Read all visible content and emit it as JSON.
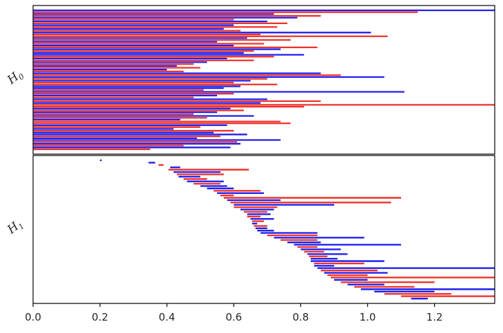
{
  "chart_data": {
    "type": "barcode",
    "title": "",
    "xlabel": "",
    "xlim": [
      0.0,
      1.38
    ],
    "xticks": [
      "0.0",
      "0.2",
      "0.4",
      "0.6",
      "0.8",
      "1.0",
      "1.2"
    ],
    "colors": {
      "blue": "#1f1fef",
      "red": "#f0302a",
      "axis": "#000000"
    },
    "panels": [
      {
        "name": "H0",
        "ylabel": "H",
        "ylabel_sub": "0",
        "bars": [
          {
            "s": 0,
            "e": 1.38,
            "c": "b"
          },
          {
            "s": 0,
            "e": 1.15,
            "c": "r"
          },
          {
            "s": 0,
            "e": 0.72,
            "c": "b"
          },
          {
            "s": 0,
            "e": 0.86,
            "c": "r"
          },
          {
            "s": 0,
            "e": 0.79,
            "c": "b"
          },
          {
            "s": 0,
            "e": 0.6,
            "c": "r"
          },
          {
            "s": 0,
            "e": 0.7,
            "c": "b"
          },
          {
            "s": 0,
            "e": 0.76,
            "c": "r"
          },
          {
            "s": 0,
            "e": 0.6,
            "c": "b"
          },
          {
            "s": 0,
            "e": 0.73,
            "c": "r"
          },
          {
            "s": 0,
            "e": 0.57,
            "c": "b"
          },
          {
            "s": 0,
            "e": 0.62,
            "c": "r"
          },
          {
            "s": 0,
            "e": 1.01,
            "c": "b"
          },
          {
            "s": 0,
            "e": 0.68,
            "c": "r"
          },
          {
            "s": 0,
            "e": 1.06,
            "c": "r"
          },
          {
            "s": 0,
            "e": 0.64,
            "c": "b"
          },
          {
            "s": 0,
            "e": 0.77,
            "c": "r"
          },
          {
            "s": 0,
            "e": 0.55,
            "c": "b"
          },
          {
            "s": 0,
            "e": 0.69,
            "c": "r"
          },
          {
            "s": 0,
            "e": 0.6,
            "c": "b"
          },
          {
            "s": 0,
            "e": 0.85,
            "c": "r"
          },
          {
            "s": 0,
            "e": 0.74,
            "c": "b"
          },
          {
            "s": 0,
            "e": 0.66,
            "c": "r"
          },
          {
            "s": 0,
            "e": 0.63,
            "c": "b"
          },
          {
            "s": 0,
            "e": 0.81,
            "c": "b"
          },
          {
            "s": 0,
            "e": 0.72,
            "c": "r"
          },
          {
            "s": 0,
            "e": 0.58,
            "c": "b"
          },
          {
            "s": 0,
            "e": 0.66,
            "c": "r"
          },
          {
            "s": 0,
            "e": 0.52,
            "c": "b"
          },
          {
            "s": 0,
            "e": 0.48,
            "c": "r"
          },
          {
            "s": 0,
            "e": 0.43,
            "c": "b"
          },
          {
            "s": 0,
            "e": 0.5,
            "c": "r"
          },
          {
            "s": 0,
            "e": 0.4,
            "c": "b"
          },
          {
            "s": 0,
            "e": 0.45,
            "c": "r"
          },
          {
            "s": 0,
            "e": 0.86,
            "c": "b"
          },
          {
            "s": 0,
            "e": 0.92,
            "c": "r"
          },
          {
            "s": 0,
            "e": 1.05,
            "c": "b"
          },
          {
            "s": 0,
            "e": 0.7,
            "c": "r"
          },
          {
            "s": 0,
            "e": 0.65,
            "c": "b"
          },
          {
            "s": 0,
            "e": 0.6,
            "c": "r"
          },
          {
            "s": 0,
            "e": 0.73,
            "c": "r"
          },
          {
            "s": 0,
            "e": 0.62,
            "c": "b"
          },
          {
            "s": 0,
            "e": 0.57,
            "c": "b"
          },
          {
            "s": 0,
            "e": 0.51,
            "c": "r"
          },
          {
            "s": 0,
            "e": 1.11,
            "c": "b"
          },
          {
            "s": 0,
            "e": 0.6,
            "c": "r"
          },
          {
            "s": 0,
            "e": 0.55,
            "c": "b"
          },
          {
            "s": 0,
            "e": 0.48,
            "c": "r"
          },
          {
            "s": 0,
            "e": 0.7,
            "c": "b"
          },
          {
            "s": 0,
            "e": 0.86,
            "c": "r"
          },
          {
            "s": 0,
            "e": 0.68,
            "c": "b"
          },
          {
            "s": 0,
            "e": 1.38,
            "c": "r"
          },
          {
            "s": 0,
            "e": 0.81,
            "c": "r"
          },
          {
            "s": 0,
            "e": 0.59,
            "c": "b"
          },
          {
            "s": 0,
            "e": 0.63,
            "c": "r"
          },
          {
            "s": 0,
            "e": 0.55,
            "c": "b"
          },
          {
            "s": 0,
            "e": 0.48,
            "c": "r"
          },
          {
            "s": 0,
            "e": 0.66,
            "c": "b"
          },
          {
            "s": 0,
            "e": 0.52,
            "c": "r"
          },
          {
            "s": 0,
            "e": 0.44,
            "c": "b"
          },
          {
            "s": 0,
            "e": 0.74,
            "c": "r"
          },
          {
            "s": 0,
            "e": 0.77,
            "c": "r"
          },
          {
            "s": 0,
            "e": 0.58,
            "c": "b"
          },
          {
            "s": 0,
            "e": 0.5,
            "c": "r"
          },
          {
            "s": 0,
            "e": 0.42,
            "c": "b"
          },
          {
            "s": 0,
            "e": 0.6,
            "c": "r"
          },
          {
            "s": 0,
            "e": 0.54,
            "c": "b"
          },
          {
            "s": 0,
            "e": 0.64,
            "c": "b"
          },
          {
            "s": 0,
            "e": 0.56,
            "c": "r"
          },
          {
            "s": 0,
            "e": 0.49,
            "c": "b"
          },
          {
            "s": 0,
            "e": 0.74,
            "c": "b"
          },
          {
            "s": 0,
            "e": 0.61,
            "c": "r"
          },
          {
            "s": 0,
            "e": 0.62,
            "c": "b"
          },
          {
            "s": 0,
            "e": 0.45,
            "c": "r"
          },
          {
            "s": 0,
            "e": 0.59,
            "c": "b"
          },
          {
            "s": 0,
            "e": 0.35,
            "c": "r"
          }
        ]
      },
      {
        "name": "H1",
        "ylabel": "H",
        "ylabel_sub": "1",
        "bars": [
          {
            "s": 0.2,
            "e": 0.205,
            "c": "b"
          },
          {
            "s": 0.345,
            "e": 0.365,
            "c": "b"
          },
          {
            "s": 0.375,
            "e": 0.39,
            "c": "r"
          },
          {
            "s": 0.41,
            "e": 0.44,
            "c": "b"
          },
          {
            "s": 0.405,
            "e": 0.645,
            "c": "r"
          },
          {
            "s": 0.42,
            "e": 0.56,
            "c": "b"
          },
          {
            "s": 0.43,
            "e": 0.57,
            "c": "r"
          },
          {
            "s": 0.435,
            "e": 0.5,
            "c": "b"
          },
          {
            "s": 0.45,
            "e": 0.52,
            "c": "r"
          },
          {
            "s": 0.46,
            "e": 0.57,
            "c": "b"
          },
          {
            "s": 0.48,
            "e": 0.56,
            "c": "r"
          },
          {
            "s": 0.5,
            "e": 0.58,
            "c": "b"
          },
          {
            "s": 0.52,
            "e": 0.6,
            "c": "b"
          },
          {
            "s": 0.54,
            "e": 0.68,
            "c": "r"
          },
          {
            "s": 0.55,
            "e": 0.69,
            "c": "b"
          },
          {
            "s": 0.56,
            "e": 0.6,
            "c": "r"
          },
          {
            "s": 0.57,
            "e": 1.1,
            "c": "r"
          },
          {
            "s": 0.58,
            "e": 0.74,
            "c": "b"
          },
          {
            "s": 0.59,
            "e": 1.07,
            "c": "r"
          },
          {
            "s": 0.6,
            "e": 0.9,
            "c": "b"
          },
          {
            "s": 0.6,
            "e": 0.73,
            "c": "r"
          },
          {
            "s": 0.62,
            "e": 0.72,
            "c": "b"
          },
          {
            "s": 0.63,
            "e": 0.7,
            "c": "r"
          },
          {
            "s": 0.64,
            "e": 0.71,
            "c": "b"
          },
          {
            "s": 0.64,
            "e": 0.68,
            "c": "r"
          },
          {
            "s": 0.65,
            "e": 0.72,
            "c": "b"
          },
          {
            "s": 0.655,
            "e": 0.69,
            "c": "r"
          },
          {
            "s": 0.655,
            "e": 0.67,
            "c": "b"
          },
          {
            "s": 0.66,
            "e": 0.7,
            "c": "r"
          },
          {
            "s": 0.665,
            "e": 0.7,
            "c": "b"
          },
          {
            "s": 0.67,
            "e": 0.72,
            "c": "b"
          },
          {
            "s": 0.68,
            "e": 0.85,
            "c": "b"
          },
          {
            "s": 0.7,
            "e": 0.85,
            "c": "r"
          },
          {
            "s": 0.72,
            "e": 0.99,
            "c": "b"
          },
          {
            "s": 0.74,
            "e": 0.85,
            "c": "r"
          },
          {
            "s": 0.76,
            "e": 0.86,
            "c": "b"
          },
          {
            "s": 0.78,
            "e": 1.1,
            "c": "b"
          },
          {
            "s": 0.79,
            "e": 0.85,
            "c": "r"
          },
          {
            "s": 0.8,
            "e": 0.92,
            "c": "b"
          },
          {
            "s": 0.81,
            "e": 0.87,
            "c": "r"
          },
          {
            "s": 0.82,
            "e": 0.94,
            "c": "b"
          },
          {
            "s": 0.825,
            "e": 0.88,
            "c": "r"
          },
          {
            "s": 0.83,
            "e": 0.91,
            "c": "b"
          },
          {
            "s": 0.83,
            "e": 1.05,
            "c": "b"
          },
          {
            "s": 0.84,
            "e": 0.99,
            "c": "r"
          },
          {
            "s": 0.84,
            "e": 0.9,
            "c": "b"
          },
          {
            "s": 0.85,
            "e": 1.38,
            "c": "b"
          },
          {
            "s": 0.86,
            "e": 1.03,
            "c": "r"
          },
          {
            "s": 0.87,
            "e": 1.06,
            "c": "b"
          },
          {
            "s": 0.88,
            "e": 1.0,
            "c": "r"
          },
          {
            "s": 0.89,
            "e": 1.38,
            "c": "r"
          },
          {
            "s": 0.9,
            "e": 1.0,
            "c": "b"
          },
          {
            "s": 0.92,
            "e": 1.2,
            "c": "r"
          },
          {
            "s": 0.94,
            "e": 1.05,
            "c": "b"
          },
          {
            "s": 0.96,
            "e": 1.14,
            "c": "r"
          },
          {
            "s": 0.98,
            "e": 1.38,
            "c": "b"
          },
          {
            "s": 1.02,
            "e": 1.2,
            "c": "b"
          },
          {
            "s": 1.05,
            "e": 1.25,
            "c": "r"
          },
          {
            "s": 1.1,
            "e": 1.38,
            "c": "r"
          },
          {
            "s": 1.13,
            "e": 1.18,
            "c": "b"
          }
        ]
      }
    ]
  }
}
